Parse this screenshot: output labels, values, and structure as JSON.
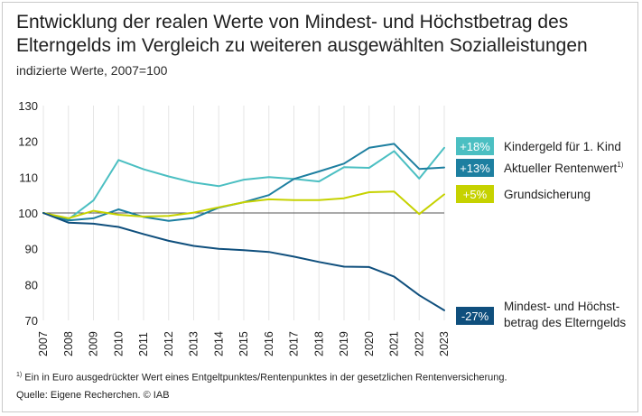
{
  "title_line1": "Entwicklung der realen Werte von Mindest- und Höchstbetrag des",
  "title_line2": "Elterngelds im Vergleich zu weiteren ausgewählten Sozialleistungen",
  "subtitle": "indizierte Werte, 2007=100",
  "footnote_marker": "1)",
  "footnote_text": "Ein in Euro ausgedrückter Wert eines Entgeltpunktes/Rentenpunktes in der gesetzlichen Rentenversicherung.",
  "source": "Quelle: Eigene Recherchen. © IAB",
  "chart_data": {
    "type": "line",
    "x": [
      "2007",
      "2008",
      "2009",
      "2010",
      "2011",
      "2012",
      "2013",
      "2014",
      "2015",
      "2016",
      "2017",
      "2018",
      "2019",
      "2020",
      "2021",
      "2022",
      "2023"
    ],
    "yticks": [
      70,
      80,
      90,
      100,
      110,
      120,
      130
    ],
    "ylim": [
      70,
      130
    ],
    "reference_line": 100,
    "grid": "vertical",
    "series": [
      {
        "name": "Kindergeld für 1. Kind",
        "badge": "+18%",
        "superscript": "",
        "color": "#4bbfc2",
        "values": [
          100,
          98.2,
          103.5,
          114.8,
          112.2,
          110.2,
          108.5,
          107.5,
          109.3,
          110,
          109.5,
          108.8,
          112.8,
          112.6,
          117.3,
          109.6,
          118.2
        ]
      },
      {
        "name": "Aktueller Rentenwert",
        "badge": "+13%",
        "superscript": "1)",
        "color": "#1d7fa0",
        "values": [
          100,
          97.9,
          98.5,
          101,
          98.9,
          97.8,
          98.6,
          101.5,
          103,
          105,
          109.5,
          111.6,
          113.8,
          118.2,
          119.3,
          112.3,
          112.7
        ]
      },
      {
        "name": "Grundsicherung",
        "badge": "+5%",
        "superscript": "",
        "color": "#c6d200",
        "values": [
          100,
          98.5,
          100.6,
          99.5,
          99,
          99.2,
          100.1,
          101.6,
          103,
          103.8,
          103.6,
          103.6,
          104.1,
          105.8,
          106,
          99.7,
          105.2
        ]
      },
      {
        "name": "Mindest- und Höchst-",
        "name_line2": "betrag des Elterngelds",
        "badge": "-27%",
        "superscript": "",
        "color": "#0f4f7d",
        "values": [
          100,
          97.3,
          97,
          96.1,
          94.1,
          92.2,
          90.8,
          90,
          89.6,
          89.1,
          87.8,
          86.3,
          85,
          84.9,
          82.2,
          77,
          72.8
        ]
      }
    ]
  }
}
